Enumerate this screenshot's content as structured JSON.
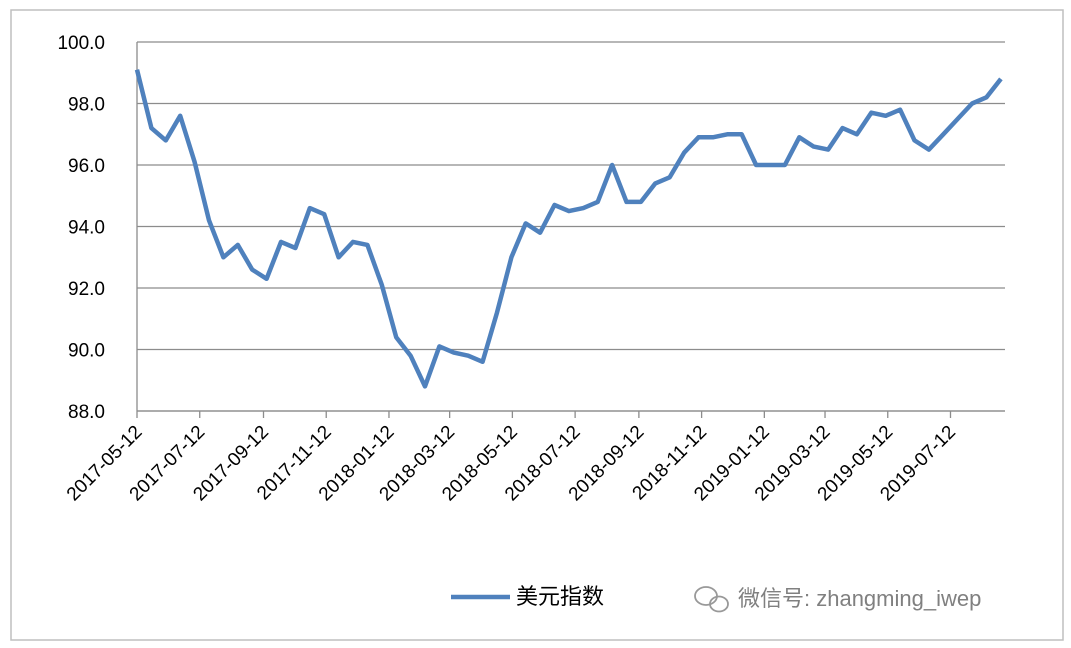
{
  "chart_data": {
    "type": "line",
    "x": [
      "2017-05-12",
      "2017-05-26",
      "2017-06-09",
      "2017-06-23",
      "2017-07-07",
      "2017-07-21",
      "2017-08-04",
      "2017-08-18",
      "2017-09-01",
      "2017-09-15",
      "2017-09-29",
      "2017-10-13",
      "2017-10-27",
      "2017-11-10",
      "2017-11-24",
      "2017-12-08",
      "2017-12-22",
      "2018-01-05",
      "2018-01-19",
      "2018-02-02",
      "2018-02-16",
      "2018-03-02",
      "2018-03-16",
      "2018-03-30",
      "2018-04-13",
      "2018-04-27",
      "2018-05-11",
      "2018-05-25",
      "2018-06-08",
      "2018-06-22",
      "2018-07-06",
      "2018-07-20",
      "2018-08-03",
      "2018-08-17",
      "2018-08-31",
      "2018-09-14",
      "2018-09-28",
      "2018-10-12",
      "2018-10-26",
      "2018-11-09",
      "2018-11-23",
      "2018-12-07",
      "2018-12-21",
      "2019-01-04",
      "2019-01-18",
      "2019-02-01",
      "2019-02-15",
      "2019-03-01",
      "2019-03-15",
      "2019-03-29",
      "2019-04-12",
      "2019-04-26",
      "2019-05-10",
      "2019-05-24",
      "2019-06-07",
      "2019-06-21",
      "2019-07-05",
      "2019-07-19",
      "2019-08-02",
      "2019-08-16",
      "2019-08-30"
    ],
    "series": [
      {
        "name": "美元指数",
        "color": "#4f81bd",
        "values": [
          99.1,
          97.2,
          96.8,
          97.6,
          96.1,
          94.2,
          93.0,
          93.4,
          92.6,
          92.3,
          93.5,
          93.3,
          94.6,
          94.4,
          93.0,
          93.5,
          93.4,
          92.1,
          90.4,
          89.8,
          88.8,
          90.1,
          89.9,
          89.8,
          89.6,
          91.2,
          93.0,
          94.1,
          93.8,
          94.7,
          94.5,
          94.6,
          94.8,
          96.0,
          94.8,
          94.8,
          95.4,
          95.6,
          96.4,
          96.9,
          96.9,
          97.0,
          97.0,
          96.0,
          96.0,
          96.0,
          96.9,
          96.6,
          96.5,
          97.2,
          97.0,
          97.7,
          97.6,
          97.8,
          96.8,
          96.5,
          97.0,
          97.5,
          98.0,
          98.2,
          98.8
        ]
      }
    ],
    "xlim": [
      "2017-05-12",
      "2019-09-03"
    ],
    "xticks": [
      "2017-05-12",
      "2017-07-12",
      "2017-09-12",
      "2017-11-12",
      "2018-01-12",
      "2018-03-12",
      "2018-05-12",
      "2018-07-12",
      "2018-09-12",
      "2018-11-12",
      "2019-01-12",
      "2019-03-12",
      "2019-05-12",
      "2019-07-12"
    ],
    "ylim": [
      88,
      100
    ],
    "yticks": [
      {
        "value": 88,
        "label": "88.0"
      },
      {
        "value": 90,
        "label": "90.0"
      },
      {
        "value": 92,
        "label": "92.0"
      },
      {
        "value": 94,
        "label": "94.0"
      },
      {
        "value": 96,
        "label": "96.0"
      },
      {
        "value": 98,
        "label": "98.0"
      },
      {
        "value": 100,
        "label": "100.0"
      }
    ],
    "grid": true,
    "watermark": "微信号: zhangming_iwep"
  }
}
